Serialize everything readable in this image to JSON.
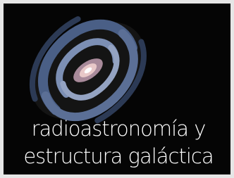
{
  "title_lines": [
    "radioastronomía y",
    "estructura galáctica"
  ]
}
